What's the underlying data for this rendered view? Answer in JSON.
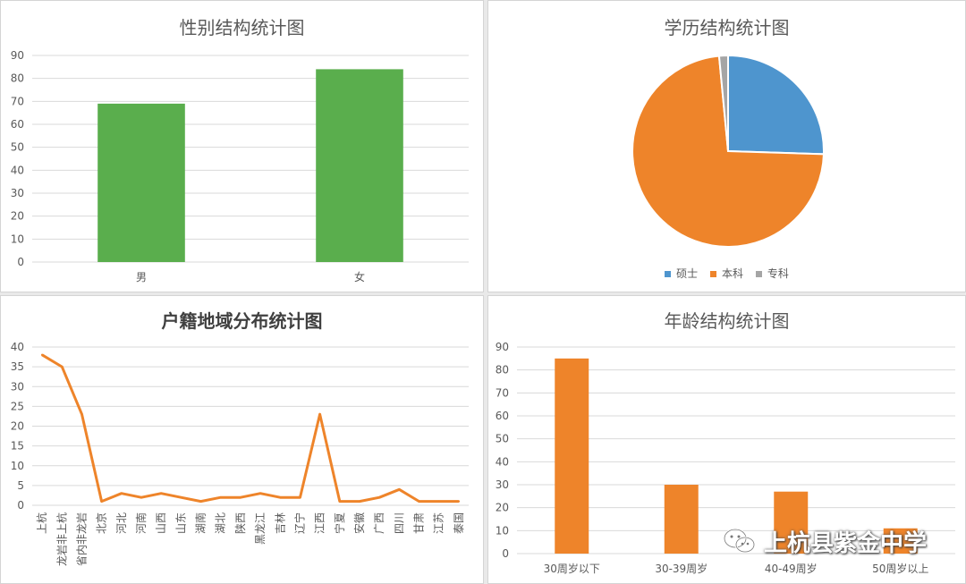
{
  "chart_data": [
    {
      "id": "gender",
      "type": "bar",
      "title": "性别结构统计图",
      "categories": [
        "男",
        "女"
      ],
      "values": [
        69,
        84
      ],
      "ylim": [
        0,
        90
      ],
      "yticks": [
        0,
        10,
        20,
        30,
        40,
        50,
        60,
        70,
        80,
        90
      ],
      "grid": true,
      "color": "#5aae4d"
    },
    {
      "id": "education",
      "type": "pie",
      "title": "学历结构统计图",
      "slices": [
        {
          "label": "硕士",
          "value": 25.5,
          "color": "#4e95ce"
        },
        {
          "label": "本科",
          "value": 73,
          "color": "#ee842a"
        },
        {
          "label": "专科",
          "value": 1.5,
          "color": "#a5a5a5"
        }
      ],
      "legend": "bottom"
    },
    {
      "id": "region",
      "type": "line",
      "title": "户籍地域分布统计图",
      "categories": [
        "上杭",
        "龙岩非上杭",
        "省内非龙岩",
        "北京",
        "河北",
        "河南",
        "山西",
        "山东",
        "湖南",
        "湖北",
        "陕西",
        "黑龙江",
        "吉林",
        "辽宁",
        "江西",
        "宁夏",
        "安徽",
        "广西",
        "四川",
        "甘肃",
        "江苏",
        "泰国"
      ],
      "values": [
        38,
        35,
        23,
        1,
        3,
        2,
        3,
        2,
        1,
        2,
        2,
        3,
        2,
        2,
        23,
        1,
        1,
        2,
        4,
        1,
        1,
        1
      ],
      "ylim": [
        0,
        40
      ],
      "yticks": [
        0,
        5,
        10,
        15,
        20,
        25,
        30,
        35,
        40
      ],
      "grid": true,
      "color": "#ee842a"
    },
    {
      "id": "age",
      "type": "bar",
      "title": "年龄结构统计图",
      "categories": [
        "30周岁以下",
        "30-39周岁",
        "40-49周岁",
        "50周岁以上"
      ],
      "values": [
        85,
        30,
        27,
        11
      ],
      "ylim": [
        0,
        90
      ],
      "yticks": [
        0,
        10,
        20,
        30,
        40,
        50,
        60,
        70,
        80,
        90
      ],
      "grid": true,
      "color": "#ee842a"
    }
  ],
  "watermark": {
    "text": "上杭县紫金中学",
    "icon": "wechat-icon"
  }
}
